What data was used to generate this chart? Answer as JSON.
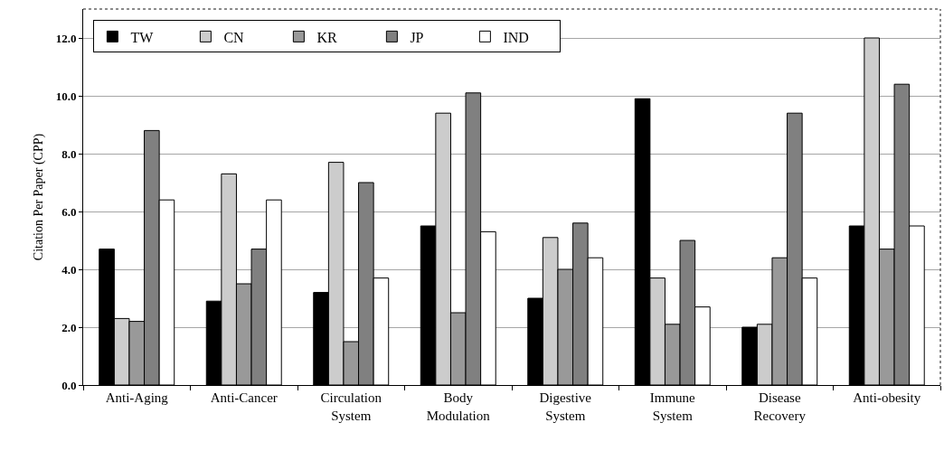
{
  "chart_data": {
    "type": "bar",
    "ylabel": "Citation Per Paper (CPP)",
    "categories": [
      "Anti-Aging",
      "Anti-Cancer",
      "Circulation System",
      "Body Modulation",
      "Digestive System",
      "Immune System",
      "Disease Recovery",
      "Anti-obesity"
    ],
    "series": [
      {
        "name": "TW",
        "color": "#000000",
        "values": [
          4.7,
          2.9,
          3.2,
          5.5,
          3.0,
          9.9,
          2.0,
          5.5
        ]
      },
      {
        "name": "CN",
        "color": "#cccccc",
        "values": [
          2.3,
          7.3,
          7.7,
          9.4,
          5.1,
          3.7,
          2.1,
          12.0
        ]
      },
      {
        "name": "KR",
        "color": "#999999",
        "values": [
          2.2,
          3.5,
          1.5,
          2.5,
          4.0,
          2.1,
          4.4,
          4.7
        ]
      },
      {
        "name": "JP",
        "color": "#808080",
        "values": [
          8.8,
          4.7,
          7.0,
          10.1,
          5.6,
          5.0,
          9.4,
          10.4
        ]
      },
      {
        "name": "IND",
        "color": "#ffffff",
        "values": [
          6.4,
          6.4,
          3.7,
          5.3,
          4.4,
          2.7,
          3.7,
          5.5
        ]
      }
    ],
    "ylim": [
      0,
      13
    ],
    "yticks": [
      {
        "value": 0,
        "label": "0.0"
      },
      {
        "value": 2,
        "label": "2.0"
      },
      {
        "value": 4,
        "label": "4.0"
      },
      {
        "value": 6,
        "label": "6.0"
      },
      {
        "value": 8,
        "label": "8.0"
      },
      {
        "value": 10,
        "label": "10.0"
      },
      {
        "value": 12,
        "label": "12.0"
      }
    ],
    "grid": "y",
    "legend": "top left"
  }
}
